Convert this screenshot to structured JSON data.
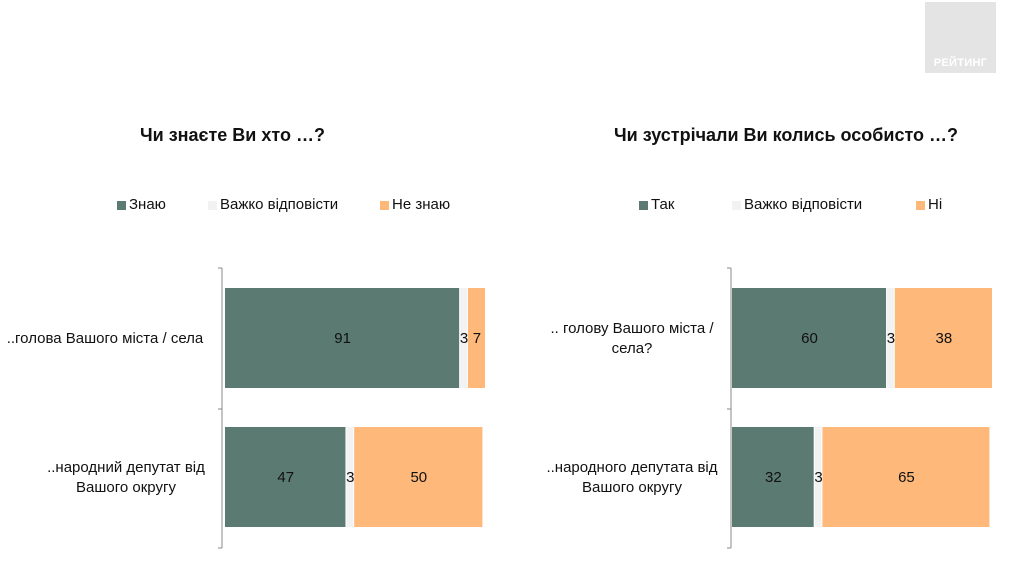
{
  "logo": {
    "text": "РЕЙТИНГ"
  },
  "colors": {
    "know": "#5b7a71",
    "hard": "#f2f2f2",
    "no": "#fdb87a"
  },
  "charts": [
    {
      "title": "Чи знаєте Ви хто …?",
      "legend": [
        "Знаю",
        "Важко відповісти",
        "Не знаю"
      ]
    },
    {
      "title": "Чи зустрічали Ви колись особисто …?",
      "legend": [
        "Так",
        "Важко відповісти",
        "Ні"
      ]
    }
  ],
  "chart_data": [
    {
      "type": "bar",
      "orientation": "horizontal",
      "stacked": true,
      "title": "Чи знаєте Ви хто …?",
      "categories": [
        "..голова Вашого міста / села",
        "..народний депутат від Вашого округу"
      ],
      "series": [
        {
          "name": "Знаю",
          "values": [
            91,
            47
          ],
          "color": "#5b7a71"
        },
        {
          "name": "Важко відповісти",
          "values": [
            3,
            3
          ],
          "color": "#f2f2f2"
        },
        {
          "name": "Не знаю",
          "values": [
            7,
            50
          ],
          "color": "#fdb87a"
        }
      ],
      "legend_position": "top"
    },
    {
      "type": "bar",
      "orientation": "horizontal",
      "stacked": true,
      "title": "Чи зустрічали Ви колись особисто …?",
      "categories": [
        ".. голову Вашого міста / села?",
        "..народного депутата від Вашого округу"
      ],
      "series": [
        {
          "name": "Так",
          "values": [
            60,
            32
          ],
          "color": "#5b7a71"
        },
        {
          "name": "Важко відповісти",
          "values": [
            3,
            3
          ],
          "color": "#f2f2f2"
        },
        {
          "name": "Ні",
          "values": [
            38,
            65
          ],
          "color": "#fdb87a"
        }
      ],
      "legend_position": "top"
    }
  ]
}
